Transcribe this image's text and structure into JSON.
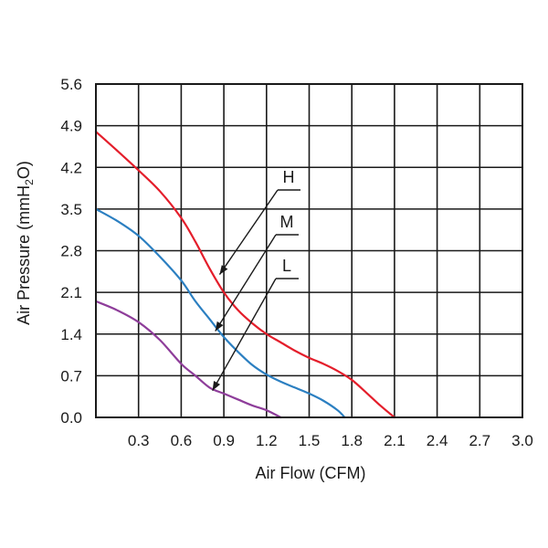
{
  "chart_data": {
    "type": "line",
    "title": "",
    "xlabel": "Air Flow (CFM)",
    "ylabel": {
      "base": "Air Pressure (mmH",
      "sub": "2",
      "tail": "O)"
    },
    "xlim": [
      0,
      3.0
    ],
    "ylim": [
      0,
      5.6
    ],
    "x_ticks": [
      0.3,
      0.6,
      0.9,
      1.2,
      1.5,
      1.8,
      2.1,
      2.4,
      2.7,
      3.0
    ],
    "x_tick_labels": [
      "0.3",
      "0.6",
      "0.9",
      "1.2",
      "1.5",
      "1.8",
      "2.1",
      "2.4",
      "2.7",
      "3.0"
    ],
    "y_ticks": [
      0.0,
      0.7,
      1.4,
      2.1,
      2.8,
      3.5,
      4.2,
      4.9,
      5.6
    ],
    "y_tick_labels": [
      "0.0",
      "0.7",
      "1.4",
      "2.1",
      "2.8",
      "3.5",
      "4.2",
      "4.9",
      "5.6"
    ],
    "grid": true,
    "series": [
      {
        "name": "H",
        "color": "#e41e2b",
        "x": [
          0.0,
          0.15,
          0.3,
          0.45,
          0.6,
          0.7,
          0.8,
          0.9,
          1.0,
          1.1,
          1.2,
          1.3,
          1.4,
          1.5,
          1.6,
          1.7,
          1.8,
          1.9,
          2.0,
          2.1
        ],
        "y": [
          4.8,
          4.48,
          4.15,
          3.8,
          3.35,
          2.95,
          2.5,
          2.1,
          1.8,
          1.58,
          1.4,
          1.26,
          1.12,
          1.0,
          0.9,
          0.78,
          0.63,
          0.42,
          0.2,
          0.0
        ]
      },
      {
        "name": "M",
        "color": "#2b7fc1",
        "x": [
          0.0,
          0.15,
          0.3,
          0.45,
          0.6,
          0.7,
          0.8,
          0.9,
          1.0,
          1.1,
          1.2,
          1.3,
          1.4,
          1.5,
          1.6,
          1.7,
          1.75
        ],
        "y": [
          3.5,
          3.3,
          3.05,
          2.7,
          2.3,
          1.95,
          1.65,
          1.35,
          1.1,
          0.88,
          0.72,
          0.6,
          0.5,
          0.4,
          0.28,
          0.12,
          0.0
        ]
      },
      {
        "name": "L",
        "color": "#8e3d9a",
        "x": [
          0.0,
          0.15,
          0.3,
          0.45,
          0.6,
          0.7,
          0.8,
          0.9,
          1.0,
          1.1,
          1.2,
          1.3
        ],
        "y": [
          1.95,
          1.8,
          1.6,
          1.3,
          0.9,
          0.7,
          0.5,
          0.4,
          0.3,
          0.2,
          0.12,
          0.0
        ]
      }
    ],
    "annotations": [
      {
        "label": "H",
        "target": [
          0.87,
          2.4
        ]
      },
      {
        "label": "M",
        "target": [
          0.84,
          1.45
        ]
      },
      {
        "label": "L",
        "target": [
          0.82,
          0.45
        ]
      }
    ]
  }
}
